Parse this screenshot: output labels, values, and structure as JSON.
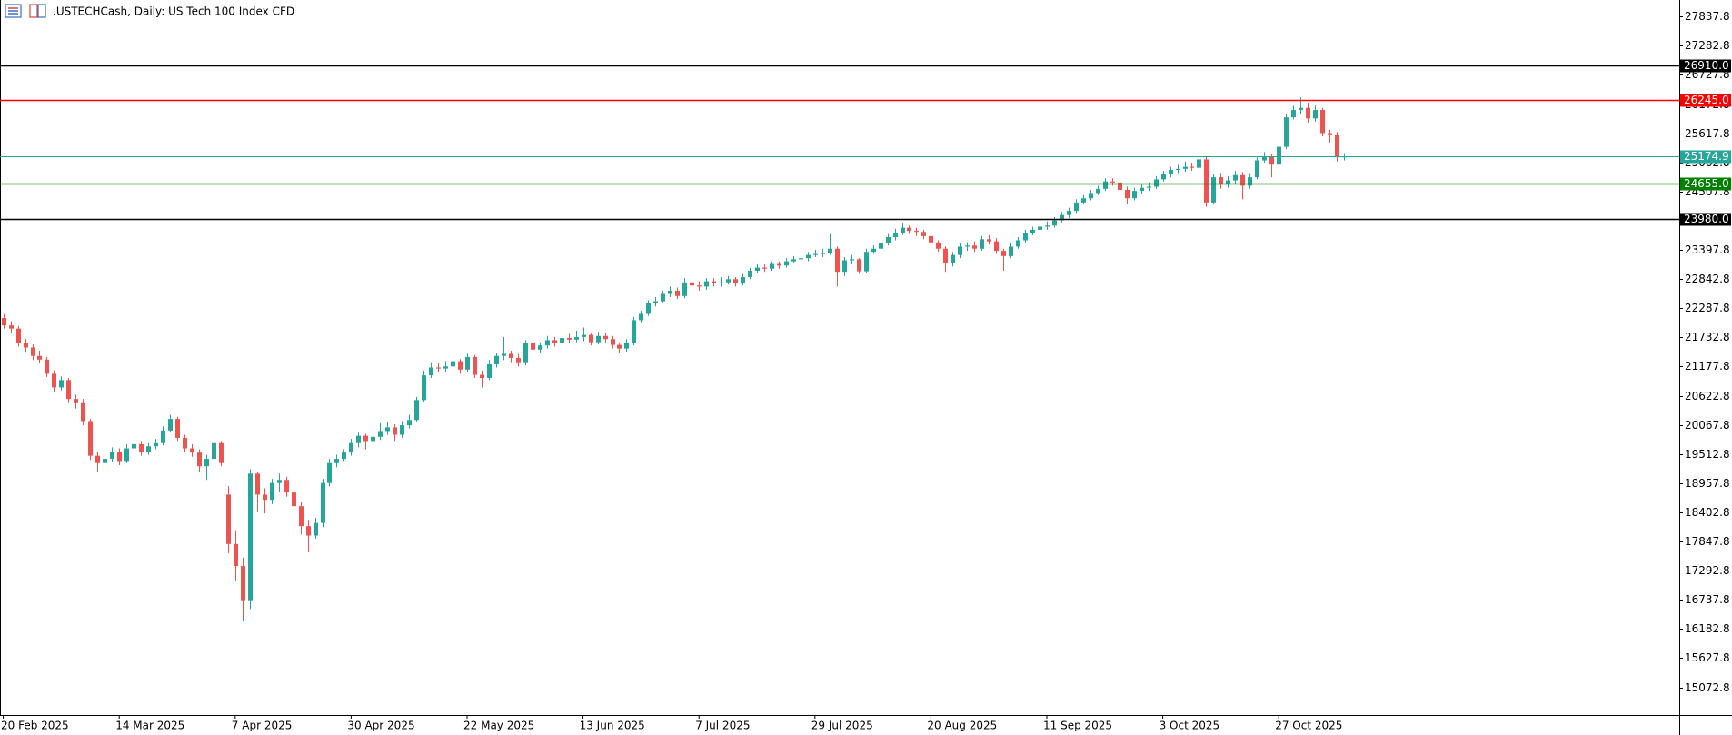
{
  "chart_data": {
    "type": "candlestick",
    "title": ".USTECHCash, Daily:  US Tech 100 Index CFD",
    "bull_color": "#26a69a",
    "bear_color": "#ef5350",
    "ylim": [
      14546,
      28153
    ],
    "yticks": [
      27837.8,
      27282.8,
      26727.8,
      26172.8,
      25617.8,
      25062.8,
      24507.8,
      23952.8,
      23397.8,
      22842.8,
      22287.8,
      21732.8,
      21177.8,
      20622.8,
      20067.8,
      19512.8,
      18957.8,
      18402.8,
      17847.8,
      17292.8,
      16737.8,
      16182.8,
      15627.8,
      15072.8
    ],
    "levels": [
      {
        "value": 26910,
        "label": "26910.0",
        "color": "#000000"
      },
      {
        "value": 26245,
        "label": "26245.0",
        "color": "#ff0000"
      },
      {
        "value": 25174.9,
        "label": "25174.9",
        "color": "#26a69a"
      },
      {
        "value": 24655,
        "label": "24655.0",
        "color": "#008000"
      },
      {
        "value": 23980,
        "label": "23980.0",
        "color": "#000000"
      }
    ],
    "categories": [
      "20 Feb 2025",
      null,
      null,
      null,
      null,
      null,
      null,
      null,
      null,
      null,
      null,
      null,
      null,
      null,
      null,
      null,
      "14 Mar 2025",
      null,
      null,
      null,
      null,
      null,
      null,
      null,
      null,
      null,
      null,
      null,
      null,
      null,
      null,
      null,
      "7 Apr 2025",
      null,
      null,
      null,
      null,
      null,
      null,
      null,
      null,
      null,
      null,
      null,
      null,
      null,
      null,
      null,
      "30 Apr 2025",
      null,
      null,
      null,
      null,
      null,
      null,
      null,
      null,
      null,
      null,
      null,
      null,
      null,
      null,
      null,
      "22 May 2025",
      null,
      null,
      null,
      null,
      null,
      null,
      null,
      null,
      null,
      null,
      null,
      null,
      null,
      null,
      null,
      "13 Jun 2025",
      null,
      null,
      null,
      null,
      null,
      null,
      null,
      null,
      null,
      null,
      null,
      null,
      null,
      null,
      null,
      "7 Jul 2025",
      null,
      null,
      null,
      null,
      null,
      null,
      null,
      null,
      null,
      null,
      null,
      null,
      null,
      null,
      null,
      "29 Jul 2025",
      null,
      null,
      null,
      null,
      null,
      null,
      null,
      null,
      null,
      null,
      null,
      null,
      null,
      null,
      null,
      "20 Aug 2025",
      null,
      null,
      null,
      null,
      null,
      null,
      null,
      null,
      null,
      null,
      null,
      null,
      null,
      null,
      null,
      "11 Sep 2025",
      null,
      null,
      null,
      null,
      null,
      null,
      null,
      null,
      null,
      null,
      null,
      null,
      null,
      null,
      null,
      "3 Oct 2025",
      null,
      null,
      null,
      null,
      null,
      null,
      null,
      null,
      null,
      null,
      null,
      null,
      null,
      null,
      null,
      "27 Oct 2025",
      null,
      null,
      null,
      null,
      null,
      null,
      null,
      null,
      null
    ],
    "open": [
      22100,
      21960,
      21900,
      21620,
      21540,
      21380,
      21310,
      21040,
      20780,
      20920,
      20560,
      20480,
      20140,
      19480,
      19340,
      19420,
      19560,
      19380,
      19620,
      19700,
      19560,
      19660,
      19720,
      19960,
      20180,
      19820,
      19620,
      19540,
      19280,
      19420,
      19720,
      18740,
      17800,
      17380,
      16730,
      19140,
      18740,
      18640,
      18960,
      19020,
      18780,
      18520,
      18140,
      17960,
      18200,
      18960,
      19340,
      19420,
      19540,
      19720,
      19860,
      19760,
      19840,
      19950,
      20020,
      19880,
      20060,
      20160,
      20540,
      21010,
      21160,
      21140,
      21180,
      21280,
      21120,
      21360,
      21020,
      20960,
      21220,
      21380,
      21420,
      21340,
      21260,
      21620,
      21500,
      21580,
      21680,
      21620,
      21720,
      21690,
      21740,
      21780,
      21640,
      21760,
      21700,
      21590,
      21520,
      21620,
      22060,
      22180,
      22380,
      22420,
      22560,
      22620,
      22520,
      22780,
      22720,
      22700,
      22800,
      22760,
      22780,
      22840,
      22760,
      22880,
      23000,
      23060,
      23040,
      23130,
      23100,
      23180,
      23220,
      23240,
      23300,
      23320,
      23340,
      23420,
      22980,
      23200,
      23220,
      22990,
      23360,
      23420,
      23520,
      23640,
      23720,
      23820,
      23760,
      23740,
      23660,
      23540,
      23420,
      23140,
      23300,
      23460,
      23480,
      23420,
      23600,
      23560,
      23380,
      23280,
      23460,
      23580,
      23720,
      23780,
      23840,
      23860,
      23960,
      24060,
      24140,
      24300,
      24380,
      24480,
      24560,
      24700,
      24680,
      24540,
      24380,
      24520,
      24580,
      24600,
      24740,
      24840,
      24920,
      24940,
      24980,
      24960,
      25120,
      24300,
      24780,
      24640,
      24720,
      24820,
      24620,
      24780,
      25100,
      25180,
      25020,
      25360,
      25920,
      26060,
      26100,
      25900,
      26060,
      25620,
      25580,
      25160
    ],
    "high": [
      22180,
      22040,
      21950,
      21700,
      21600,
      21480,
      21360,
      21100,
      20990,
      20960,
      20640,
      20560,
      20180,
      19560,
      19500,
      19640,
      19620,
      19700,
      19780,
      19760,
      19720,
      19800,
      20040,
      20260,
      20220,
      19880,
      19700,
      19600,
      19500,
      19780,
      19760,
      18900,
      18060,
      17540,
      19220,
      19180,
      18860,
      19040,
      19140,
      19080,
      18820,
      18600,
      18260,
      18300,
      19040,
      19420,
      19500,
      19600,
      19800,
      19920,
      19900,
      19940,
      20100,
      20120,
      20080,
      20140,
      20260,
      20600,
      21100,
      21260,
      21240,
      21280,
      21340,
      21320,
      21420,
      21400,
      21100,
      21300,
      21440,
      21740,
      21480,
      21420,
      21680,
      21680,
      21640,
      21760,
      21740,
      21800,
      21800,
      21860,
      21920,
      21820,
      21840,
      21820,
      21760,
      21640,
      21700,
      22120,
      22240,
      22440,
      22500,
      22620,
      22700,
      22680,
      22860,
      22840,
      22800,
      22860,
      22860,
      22880,
      22900,
      22880,
      22940,
      23060,
      23120,
      23120,
      23180,
      23180,
      23240,
      23280,
      23300,
      23360,
      23400,
      23420,
      23700,
      23460,
      23260,
      23300,
      23240,
      23420,
      23480,
      23580,
      23700,
      23800,
      23900,
      23860,
      23820,
      23780,
      23700,
      23580,
      23460,
      23360,
      23520,
      23540,
      23560,
      23660,
      23680,
      23620,
      23420,
      23520,
      23640,
      23780,
      23840,
      23900,
      23940,
      24020,
      24120,
      24200,
      24360,
      24440,
      24540,
      24620,
      24760,
      24760,
      24720,
      24600,
      24580,
      24660,
      24680,
      24800,
      24900,
      24980,
      25020,
      25080,
      25060,
      25200,
      25180,
      24840,
      24860,
      24800,
      24900,
      24880,
      24860,
      25160,
      25260,
      25220,
      25420,
      25980,
      26140,
      26300,
      26200,
      26140,
      26100,
      25680,
      25640,
      25240
    ],
    "low": [
      21900,
      21820,
      21560,
      21460,
      21300,
      21240,
      20980,
      20700,
      20720,
      20480,
      20380,
      20060,
      19400,
      19160,
      19240,
      19360,
      19300,
      19340,
      19560,
      19480,
      19500,
      19600,
      19680,
      19920,
      19760,
      19540,
      19460,
      19160,
      19020,
      19360,
      19280,
      17620,
      17100,
      16330,
      16560,
      18420,
      18380,
      18560,
      18800,
      18700,
      18420,
      17980,
      17640,
      17900,
      18120,
      18900,
      19260,
      19380,
      19480,
      19640,
      19600,
      19700,
      19780,
      19880,
      19760,
      19820,
      20000,
      20120,
      20500,
      20960,
      21060,
      21080,
      21120,
      21040,
      21080,
      20960,
      20780,
      20920,
      21160,
      21300,
      21260,
      21180,
      21200,
      21440,
      21440,
      21520,
      21560,
      21580,
      21620,
      21640,
      21660,
      21580,
      21600,
      21620,
      21520,
      21440,
      21460,
      21580,
      22020,
      22140,
      22320,
      22380,
      22500,
      22460,
      22480,
      22660,
      22620,
      22640,
      22700,
      22700,
      22740,
      22700,
      22720,
      22840,
      22960,
      22980,
      23000,
      23040,
      23060,
      23140,
      23180,
      23180,
      23260,
      23260,
      23300,
      22700,
      22900,
      23120,
      22940,
      22960,
      23320,
      23380,
      23480,
      23580,
      23680,
      23700,
      23660,
      23600,
      23460,
      23360,
      22980,
      23080,
      23240,
      23380,
      23360,
      23380,
      23500,
      23320,
      23000,
      23240,
      23420,
      23540,
      23680,
      23740,
      23780,
      23820,
      23920,
      24000,
      24100,
      24260,
      24340,
      24440,
      24520,
      24620,
      24480,
      24280,
      24340,
      24460,
      24520,
      24560,
      24700,
      24780,
      24860,
      24880,
      24900,
      24920,
      24220,
      24260,
      24560,
      24580,
      24660,
      24360,
      24560,
      24740,
      25060,
      24780,
      24980,
      25320,
      25880,
      25980,
      25820,
      25840,
      25560,
      25440,
      25080,
      25100
    ],
    "close": [
      21960,
      21900,
      21620,
      21540,
      21380,
      21310,
      21040,
      20780,
      20920,
      20560,
      20480,
      20140,
      19480,
      19340,
      19420,
      19560,
      19380,
      19620,
      19700,
      19560,
      19660,
      19720,
      19960,
      20180,
      19820,
      19620,
      19540,
      19280,
      19420,
      19720,
      19340,
      17800,
      17380,
      16730,
      19140,
      18740,
      18640,
      18960,
      19020,
      18780,
      18520,
      18140,
      17960,
      18200,
      18960,
      19340,
      19420,
      19540,
      19720,
      19860,
      19760,
      19840,
      19950,
      20020,
      19880,
      20060,
      20160,
      20540,
      21010,
      21160,
      21140,
      21180,
      21280,
      21120,
      21360,
      21020,
      20960,
      21220,
      21380,
      21420,
      21340,
      21260,
      21620,
      21500,
      21580,
      21680,
      21620,
      21720,
      21690,
      21740,
      21780,
      21640,
      21760,
      21700,
      21590,
      21520,
      21620,
      22060,
      22180,
      22380,
      22420,
      22560,
      22620,
      22520,
      22780,
      22720,
      22700,
      22800,
      22760,
      22780,
      22840,
      22760,
      22880,
      23000,
      23060,
      23040,
      23130,
      23100,
      23180,
      23220,
      23240,
      23300,
      23320,
      23340,
      23420,
      22980,
      23200,
      23220,
      22990,
      23360,
      23420,
      23520,
      23640,
      23720,
      23820,
      23760,
      23740,
      23660,
      23540,
      23420,
      23140,
      23300,
      23460,
      23480,
      23420,
      23600,
      23560,
      23380,
      23280,
      23460,
      23580,
      23720,
      23780,
      23840,
      23860,
      23960,
      24060,
      24140,
      24300,
      24380,
      24480,
      24560,
      24700,
      24680,
      24540,
      24380,
      24520,
      24580,
      24600,
      24740,
      24840,
      24920,
      24940,
      24980,
      24960,
      25120,
      24300,
      24780,
      24640,
      24720,
      24820,
      24620,
      24780,
      25100,
      25180,
      25020,
      25360,
      25920,
      26060,
      26100,
      25900,
      26060,
      25620,
      25580,
      25160,
      25174.9
    ]
  }
}
